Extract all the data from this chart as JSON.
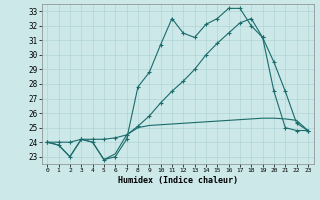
{
  "xlabel": "Humidex (Indice chaleur)",
  "background_color": "#cce8e8",
  "grid_color": "#b0d4d4",
  "line_color": "#1a6b6b",
  "xlim": [
    -0.5,
    23.5
  ],
  "ylim": [
    22.5,
    33.5
  ],
  "xticks": [
    0,
    1,
    2,
    3,
    4,
    5,
    6,
    7,
    8,
    9,
    10,
    11,
    12,
    13,
    14,
    15,
    16,
    17,
    18,
    19,
    20,
    21,
    22,
    23
  ],
  "yticks": [
    23,
    24,
    25,
    26,
    27,
    28,
    29,
    30,
    31,
    32,
    33
  ],
  "line1_x": [
    0,
    1,
    2,
    3,
    4,
    5,
    6,
    7,
    8,
    9,
    10,
    11,
    12,
    13,
    14,
    15,
    16,
    17,
    18,
    19,
    20,
    21,
    22,
    23
  ],
  "line1_y": [
    24.0,
    23.8,
    23.0,
    24.2,
    24.0,
    22.8,
    23.0,
    24.2,
    27.8,
    28.8,
    30.7,
    32.5,
    31.5,
    31.2,
    32.1,
    32.5,
    33.2,
    33.2,
    32.0,
    31.2,
    27.5,
    25.0,
    24.8,
    24.8
  ],
  "line2_x": [
    0,
    1,
    2,
    3,
    4,
    5,
    6,
    7,
    8,
    9,
    10,
    11,
    12,
    13,
    14,
    15,
    16,
    17,
    18,
    19,
    20,
    21,
    22,
    23
  ],
  "line2_y": [
    24.0,
    23.8,
    23.0,
    24.2,
    24.0,
    22.8,
    23.2,
    24.5,
    25.0,
    25.15,
    25.2,
    25.25,
    25.3,
    25.35,
    25.4,
    25.45,
    25.5,
    25.55,
    25.6,
    25.65,
    25.65,
    25.6,
    25.5,
    24.8
  ],
  "line3_x": [
    0,
    1,
    2,
    3,
    4,
    5,
    6,
    7,
    8,
    9,
    10,
    11,
    12,
    13,
    14,
    15,
    16,
    17,
    18,
    19,
    20,
    21,
    22,
    23
  ],
  "line3_y": [
    24.0,
    24.0,
    24.0,
    24.2,
    24.2,
    24.2,
    24.3,
    24.5,
    25.1,
    25.8,
    26.7,
    27.5,
    28.2,
    29.0,
    30.0,
    30.8,
    31.5,
    32.2,
    32.5,
    31.2,
    29.5,
    27.5,
    25.3,
    24.8
  ]
}
